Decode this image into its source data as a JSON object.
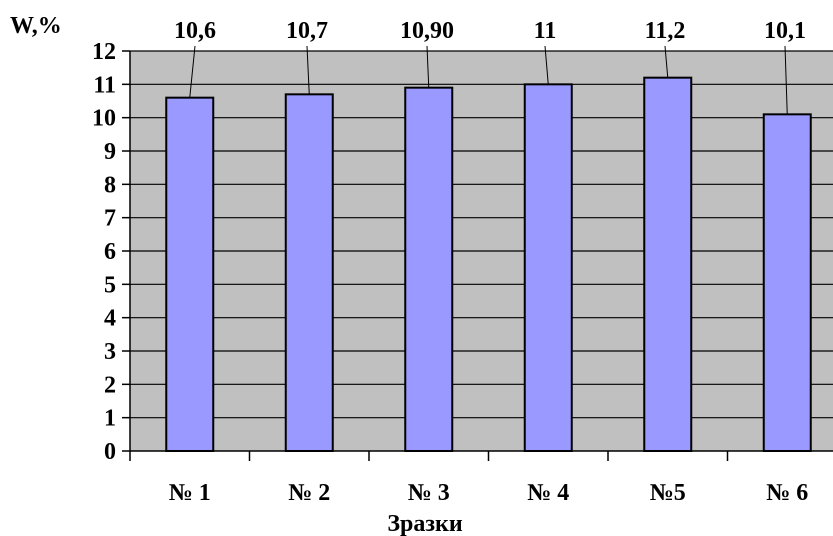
{
  "chart_data": {
    "type": "bar",
    "ylabel": "W,%",
    "xlabel": "Зразки",
    "categories": [
      "№ 1",
      "№ 2",
      "№ 3",
      "№ 4",
      "№5",
      "№ 6"
    ],
    "values": [
      10.6,
      10.7,
      10.9,
      11,
      11.2,
      10.1
    ],
    "data_labels": [
      "10,6",
      "10,7",
      "10,90",
      "11",
      "11,2",
      "10,1"
    ],
    "ylim": [
      0,
      12
    ],
    "yticks": [
      "0",
      "1",
      "2",
      "3",
      "4",
      "5",
      "6",
      "7",
      "8",
      "9",
      "10",
      "11",
      "12"
    ],
    "grid": true,
    "legend": "none",
    "colors": {
      "bar_fill": "#9999ff",
      "plot_background": "#c0c0c0",
      "gridline": "#000000",
      "bar_stroke": "#000000"
    }
  }
}
